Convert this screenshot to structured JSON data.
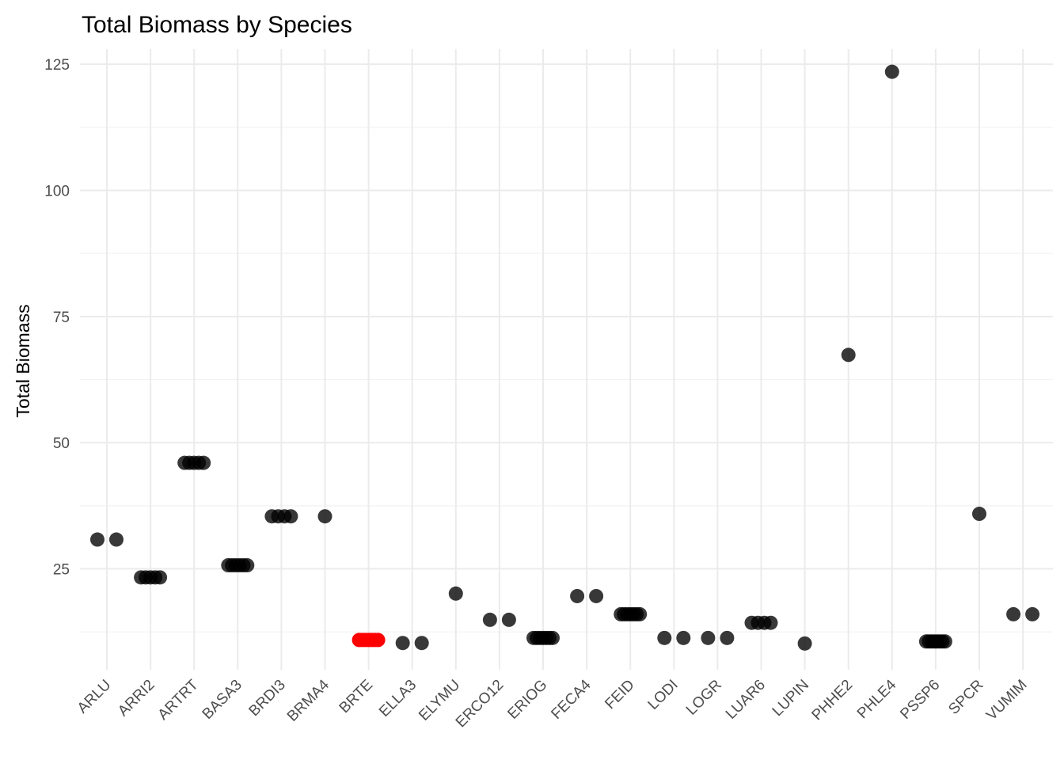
{
  "chart_data": {
    "type": "scatter",
    "title": "Total Biomass by Species",
    "xlabel": "",
    "ylabel": "Total Biomass",
    "ylim": [
      5,
      128
    ],
    "yticks": [
      25,
      50,
      75,
      100,
      125
    ],
    "grid": true,
    "legend": "none",
    "highlight_color": "#ff0000",
    "point_color": "#000000",
    "categories": [
      "ARLU",
      "ARRI2",
      "ARTRT",
      "BASA3",
      "BRDI3",
      "BRMA4",
      "BRTE",
      "ELLA3",
      "ELYMU",
      "ERCO12",
      "ERIOG",
      "FECA4",
      "FEID",
      "LODI",
      "LOGR",
      "LUAR6",
      "LUPIN",
      "PHHE2",
      "PHLE4",
      "PSSP6",
      "SPCR",
      "VUMIM"
    ],
    "series": [
      {
        "points": [
          {
            "x": "ARLU",
            "y": 30.8
          },
          {
            "x": "ARLU",
            "y": 30.8
          },
          {
            "x": "ARRI2",
            "y": 23.3
          },
          {
            "x": "ARRI2",
            "y": 23.3
          },
          {
            "x": "ARRI2",
            "y": 23.3
          },
          {
            "x": "ARRI2",
            "y": 23.3
          },
          {
            "x": "ARRI2",
            "y": 23.3
          },
          {
            "x": "ARTRT",
            "y": 46.0
          },
          {
            "x": "ARTRT",
            "y": 46.0
          },
          {
            "x": "ARTRT",
            "y": 46.0
          },
          {
            "x": "ARTRT",
            "y": 46.0
          },
          {
            "x": "ARTRT",
            "y": 46.0
          },
          {
            "x": "BASA3",
            "y": 25.7
          },
          {
            "x": "BASA3",
            "y": 25.7
          },
          {
            "x": "BASA3",
            "y": 25.7
          },
          {
            "x": "BASA3",
            "y": 25.7
          },
          {
            "x": "BASA3",
            "y": 25.7
          },
          {
            "x": "BASA3",
            "y": 25.7
          },
          {
            "x": "BRDI3",
            "y": 35.4
          },
          {
            "x": "BRDI3",
            "y": 35.4
          },
          {
            "x": "BRDI3",
            "y": 35.4
          },
          {
            "x": "BRDI3",
            "y": 35.4
          },
          {
            "x": "BRMA4",
            "y": 35.4
          },
          {
            "x": "BRTE",
            "y": 10.9,
            "highlight": true
          },
          {
            "x": "BRTE",
            "y": 10.9,
            "highlight": true
          },
          {
            "x": "BRTE",
            "y": 10.9,
            "highlight": true
          },
          {
            "x": "BRTE",
            "y": 10.9,
            "highlight": true
          },
          {
            "x": "BRTE",
            "y": 10.9,
            "highlight": true
          },
          {
            "x": "BRTE",
            "y": 10.9,
            "highlight": true
          },
          {
            "x": "BRTE",
            "y": 10.9,
            "highlight": true
          },
          {
            "x": "ELLA3",
            "y": 10.3
          },
          {
            "x": "ELLA3",
            "y": 10.3
          },
          {
            "x": "ELYMU",
            "y": 20.1
          },
          {
            "x": "ERCO12",
            "y": 14.9
          },
          {
            "x": "ERCO12",
            "y": 14.9
          },
          {
            "x": "ERIOG",
            "y": 11.3
          },
          {
            "x": "ERIOG",
            "y": 11.3
          },
          {
            "x": "ERIOG",
            "y": 11.3
          },
          {
            "x": "ERIOG",
            "y": 11.3
          },
          {
            "x": "ERIOG",
            "y": 11.3
          },
          {
            "x": "ERIOG",
            "y": 11.3
          },
          {
            "x": "ERIOG",
            "y": 11.3
          },
          {
            "x": "FECA4",
            "y": 19.6
          },
          {
            "x": "FECA4",
            "y": 19.6
          },
          {
            "x": "FEID",
            "y": 16.0
          },
          {
            "x": "FEID",
            "y": 16.0
          },
          {
            "x": "FEID",
            "y": 16.0
          },
          {
            "x": "FEID",
            "y": 16.0
          },
          {
            "x": "FEID",
            "y": 16.0
          },
          {
            "x": "FEID",
            "y": 16.0
          },
          {
            "x": "FEID",
            "y": 16.0
          },
          {
            "x": "LODI",
            "y": 11.3
          },
          {
            "x": "LODI",
            "y": 11.3
          },
          {
            "x": "LOGR",
            "y": 11.3
          },
          {
            "x": "LOGR",
            "y": 11.3
          },
          {
            "x": "LUAR6",
            "y": 14.3
          },
          {
            "x": "LUAR6",
            "y": 14.3
          },
          {
            "x": "LUAR6",
            "y": 14.3
          },
          {
            "x": "LUAR6",
            "y": 14.3
          },
          {
            "x": "LUPIN",
            "y": 10.2
          },
          {
            "x": "PHHE2",
            "y": 67.4
          },
          {
            "x": "PHLE4",
            "y": 123.5
          },
          {
            "x": "PSSP6",
            "y": 10.6
          },
          {
            "x": "PSSP6",
            "y": 10.6
          },
          {
            "x": "PSSP6",
            "y": 10.6
          },
          {
            "x": "PSSP6",
            "y": 10.6
          },
          {
            "x": "PSSP6",
            "y": 10.6
          },
          {
            "x": "PSSP6",
            "y": 10.6
          },
          {
            "x": "PSSP6",
            "y": 10.6
          },
          {
            "x": "PSSP6",
            "y": 10.6
          },
          {
            "x": "SPCR",
            "y": 35.9
          },
          {
            "x": "VUMIM",
            "y": 16.0
          },
          {
            "x": "VUMIM",
            "y": 16.0
          }
        ]
      }
    ]
  }
}
